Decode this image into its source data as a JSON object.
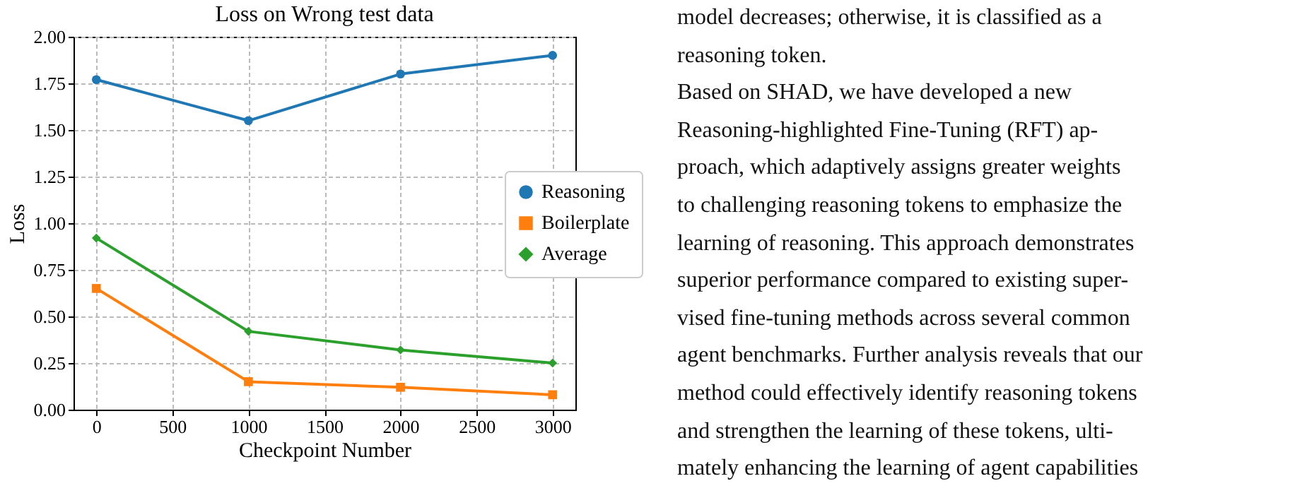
{
  "chart_data": {
    "type": "line",
    "title": "Loss on Wrong test data",
    "xlabel": "Checkpoint Number",
    "ylabel": "Loss",
    "x": [
      0,
      1000,
      2000,
      3000
    ],
    "series": [
      {
        "name": "Reasoning",
        "color": "#1f77b4",
        "marker": "circle",
        "values": [
          1.77,
          1.55,
          1.8,
          1.9
        ]
      },
      {
        "name": "Boilerplate",
        "color": "#ff7f0e",
        "marker": "square",
        "values": [
          0.65,
          0.15,
          0.12,
          0.08
        ]
      },
      {
        "name": "Average",
        "color": "#2ca02c",
        "marker": "diamond",
        "values": [
          0.92,
          0.42,
          0.32,
          0.25
        ]
      }
    ],
    "xlim": [
      -150,
      3150
    ],
    "xticks": [
      0,
      500,
      1000,
      1500,
      2000,
      2500,
      3000
    ],
    "ylim": [
      0,
      2
    ],
    "yticks": [
      {
        "value": 0,
        "label": "0.00"
      },
      0.25,
      {
        "value": 0.5,
        "label": "0.50"
      },
      0.75,
      {
        "value": 1,
        "label": "1.00"
      },
      1.25,
      {
        "value": 1.5,
        "label": "1.50"
      },
      1.75,
      {
        "value": 2,
        "label": "2.00"
      }
    ],
    "grid": true,
    "legend": "right",
    "line_style": "solid",
    "annotations": [
      "model decreases; otherwise, it is classified as a",
      "reasoning token.",
      "Based on SHAD, we have developed a new",
      "Reasoning-highlighted Fine-Tuning (RFT) ap-",
      "proach, which adaptively assigns greater weights",
      "to challenging reasoning tokens to emphasize the",
      "learning of reasoning. This approach demonstrates",
      "superior performance compared to existing super-",
      "vised fine-tuning methods across several common",
      "agent benchmarks. Further analysis reveals that our",
      "method could effectively identify reasoning tokens",
      "and strengthen the learning of these tokens, ulti-",
      "mately enhancing the learning of agent capabilities"
    ]
  }
}
